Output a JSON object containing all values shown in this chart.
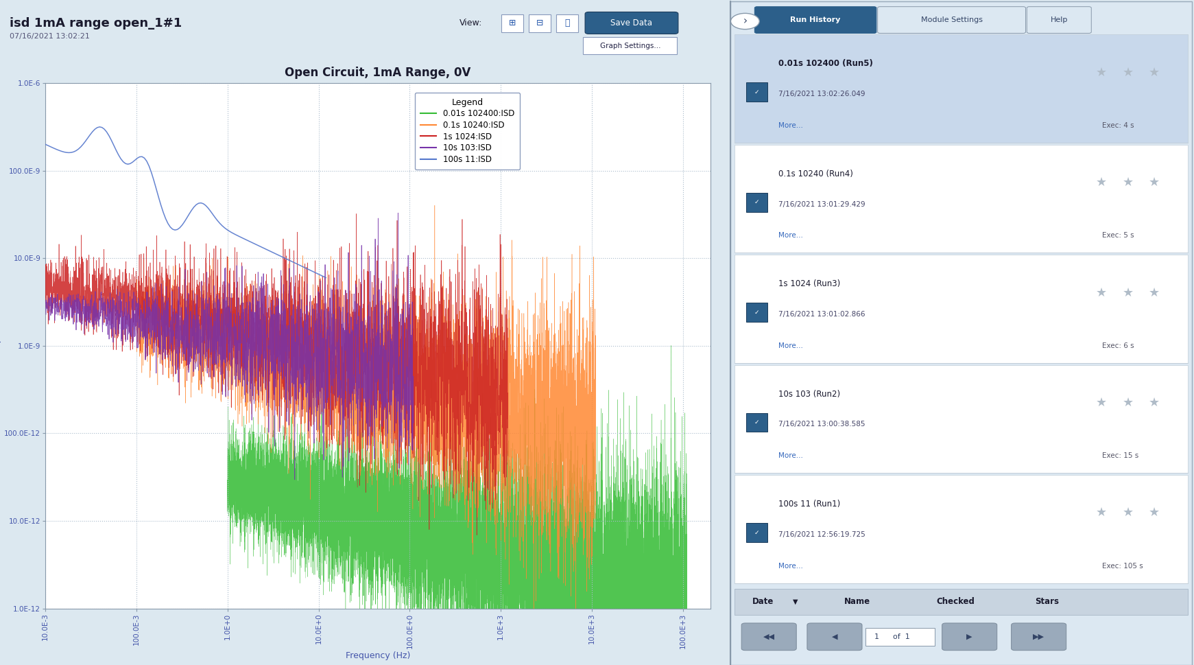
{
  "title": "isd 1mA range open_1#1",
  "date": "07/16/2021 13:02:21",
  "plot_title": "Open Circuit, 1mA Range, 0V",
  "xlabel": "Frequency (Hz)",
  "ylabel": "ISD (A/(sqrt(Hz)))",
  "xmin": 0.01,
  "xmax": 200000,
  "ymin": 1e-12,
  "ymax": 1e-06,
  "bg_color": "#dce8f0",
  "plot_bg": "#ffffff",
  "grid_color": "#aabccc",
  "series_colors": [
    "#33bb33",
    "#ff8833",
    "#cc2222",
    "#7733cc",
    "#4466cc"
  ],
  "series_labels": [
    "0.01s 102400:ISD",
    "0.1s 10240:ISD",
    "1s 1024:ISD",
    "10s 103:ISD",
    "100s 11:ISD"
  ],
  "ytick_labels": [
    "1.0E-6",
    "100.0E-9",
    "10.0E-9",
    "1.0E-9",
    "100.0E-12",
    "10.0E-12",
    "1.0E-12"
  ],
  "ytick_values": [
    1e-06,
    1e-07,
    1e-08,
    1e-09,
    1e-10,
    1e-11,
    1e-12
  ],
  "xtick_labels": [
    "10.0E-3",
    "100.0E-3",
    "1.0E+0",
    "10.0E+0",
    "100.0E+0",
    "1.0E+3",
    "10.0E+3",
    "100.0E+3"
  ],
  "xtick_values": [
    0.01,
    0.1,
    1.0,
    10.0,
    100.0,
    1000.0,
    10000.0,
    100000.0
  ],
  "right_panel_bg": "#dce8f2",
  "run_history_bg": "#ffffff",
  "selected_bg": "#c8d8eb",
  "run_history": [
    {
      "title": "0.01s 102400 (Run5)",
      "date": "7/16/2021 13:02:26.049",
      "exec": "Exec: 4 s",
      "selected": true
    },
    {
      "title": "0.1s 10240 (Run4)",
      "date": "7/16/2021 13:01:29.429",
      "exec": "Exec: 5 s",
      "selected": false
    },
    {
      "title": "1s 1024 (Run3)",
      "date": "7/16/2021 13:01:02.866",
      "exec": "Exec: 6 s",
      "selected": false
    },
    {
      "title": "10s 103 (Run2)",
      "date": "7/16/2021 13:00:38.585",
      "exec": "Exec: 15 s",
      "selected": false
    },
    {
      "title": "100s 11 (Run1)",
      "date": "7/16/2021 12:56:19.725",
      "exec": "Exec: 105 s",
      "selected": false
    }
  ],
  "tab_labels": [
    "Run History",
    "Module Settings",
    "Help"
  ],
  "active_tab": "Run History",
  "tab_active_color": "#2c5f8a",
  "tab_inactive_color": "#dce8f2",
  "header_color": "#2c5f8a",
  "text_color": "#1a1a2e",
  "more_color": "#3366bb",
  "exec_color": "#555566",
  "checkbox_color": "#2c5f8a",
  "star_color": "#b0bcc8",
  "save_btn_color": "#2c5f8a",
  "bottom_bar_bg": "#c8d4e0",
  "nav_btn_color": "#9aaabb"
}
